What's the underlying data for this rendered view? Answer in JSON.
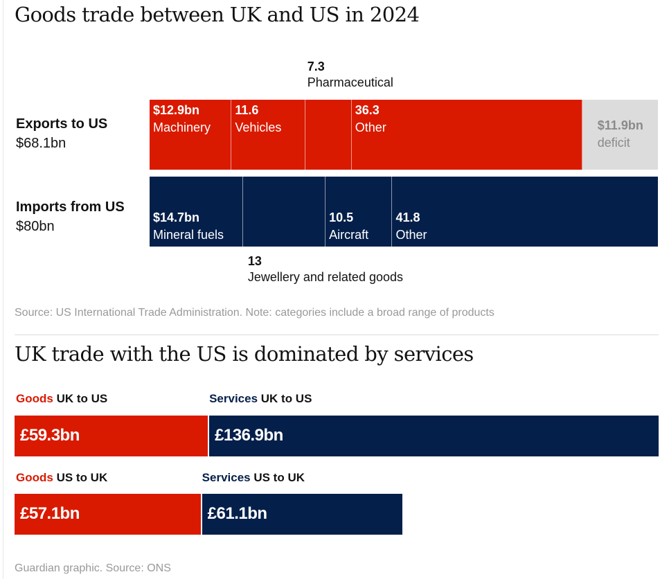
{
  "colors": {
    "red": "#d91a00",
    "navy": "#041f4a",
    "grey": "#dcdcdc",
    "note": "#999999"
  },
  "chart_data": [
    {
      "type": "bar",
      "title": "Goods trade between UK and US in 2024",
      "unit": "$bn",
      "rows": [
        {
          "name": "Exports to US",
          "total_label": "$68.1bn",
          "segments": [
            {
              "value": 12.9,
              "value_label": "$12.9bn",
              "category": "Machinery"
            },
            {
              "value": 11.6,
              "value_label": "11.6",
              "category": "Vehicles"
            },
            {
              "value": 7.3,
              "value_label": "7.3",
              "category": "Pharmaceutical"
            },
            {
              "value": 36.3,
              "value_label": "36.3",
              "category": "Other"
            },
            {
              "value": 11.9,
              "value_label": "$11.9bn",
              "category": "deficit"
            }
          ]
        },
        {
          "name": "Imports from US",
          "total_label": "$80bn",
          "segments": [
            {
              "value": 14.7,
              "value_label": "$14.7bn",
              "category": "Mineral fuels"
            },
            {
              "value": 13,
              "value_label": "13",
              "category": "Jewellery and related goods"
            },
            {
              "value": 10.5,
              "value_label": "10.5",
              "category": "Aircraft"
            },
            {
              "value": 41.8,
              "value_label": "41.8",
              "category": "Other"
            }
          ]
        }
      ],
      "note": "Source: US International Trade Administration. Note: categories include a broad range of products"
    },
    {
      "type": "bar",
      "title": "UK trade with the US is dominated by services",
      "unit": "£bn",
      "rows": [
        {
          "segments": [
            {
              "kind": "Goods",
              "direction": "UK to US",
              "value": 59.3,
              "value_label": "£59.3bn"
            },
            {
              "kind": "Services",
              "direction": "UK to US",
              "value": 136.9,
              "value_label": "£136.9bn"
            }
          ]
        },
        {
          "segments": [
            {
              "kind": "Goods",
              "direction": "US to UK",
              "value": 57.1,
              "value_label": "£57.1bn"
            },
            {
              "kind": "Services",
              "direction": "US to UK",
              "value": 61.1,
              "value_label": "£61.1bn"
            }
          ]
        }
      ],
      "note": "Guardian graphic. Source: ONS"
    }
  ]
}
